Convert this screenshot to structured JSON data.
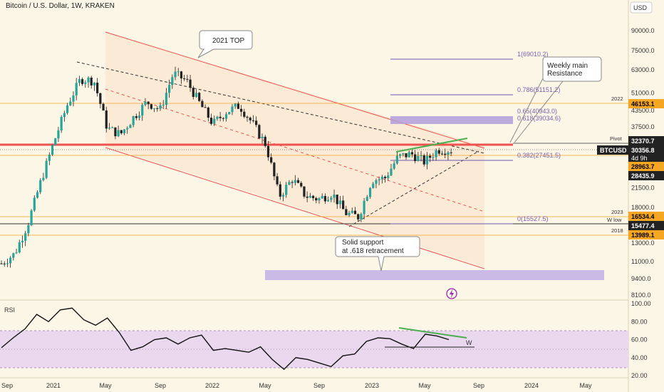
{
  "header": {
    "title": "Bitcoin / U.S. Dollar, 1W, KRAKEN"
  },
  "currency_button": "USD",
  "colors": {
    "up": "#26a69a",
    "down": "#222222",
    "bg": "#fbf6e6",
    "resistance": "#ef5350",
    "fib": "#6e5bb5",
    "rsi_band": "#ead8ee",
    "orange": "#f5a623",
    "green_line": "#4caf50"
  },
  "callouts": {
    "top_2021": "2021 TOP",
    "weekly_res_1": "Weekly main",
    "weekly_res_2": "Resistance",
    "support_1": "Solid support",
    "support_2": "at .618 retracement"
  },
  "fib_labels": {
    "f1": "1(69010.2)",
    "f786": "0.786(51151.2)",
    "f65": "0.65(40943.0)",
    "f618": "0.618(39034.6)",
    "f382": "0.382(27451.5)",
    "f0": "0(15527.5)"
  },
  "line_labels": {
    "y2022": "2022",
    "pivot": "Pivot",
    "y2023": "2023",
    "wlow": "W low",
    "y2018": "2018"
  },
  "price_tags": {
    "t46153": "46153.1",
    "t32370": "32370.7",
    "btcusd": "BTCUSD",
    "t30356": "30356.8",
    "t4d9h": "4d 9h",
    "t28963": "28963.7",
    "t28435": "28435.9",
    "t16534": "16534.4",
    "t15477": "15477.4",
    "t13989": "13989.1"
  },
  "rsi": {
    "label": "RSI",
    "divergence_mark": "W"
  },
  "chart_data": [
    {
      "type": "candlestick",
      "title": "Bitcoin / U.S. Dollar, 1W, KRAKEN",
      "scale": "log",
      "y_ticks": [
        "90000.0",
        "75000.0",
        "63000.0",
        "51000.0",
        "43500.0",
        "37500.0",
        "30500.0",
        "25500.0",
        "21500.0",
        "18000.0",
        "15000.0",
        "13000.0",
        "11000.0",
        "9400.0",
        "8100.0"
      ],
      "y_tick_values": [
        90000,
        75000,
        63000,
        51000,
        43500,
        37500,
        30500,
        25500,
        21500,
        18000,
        15000,
        13000,
        11000,
        9400,
        8100
      ],
      "x_ticks": [
        "Sep",
        "2021",
        "May",
        "Sep",
        "2022",
        "May",
        "Sep",
        "2023",
        "May",
        "Sep",
        "2024",
        "May"
      ],
      "horizontal_levels": [
        46153.1,
        32370.7,
        30356.8,
        28963.7,
        28435.9,
        16534.4,
        15477.4,
        13989.1
      ],
      "fib_levels": [
        69010.2,
        51151.2,
        40943.0,
        39034.6,
        27451.5,
        15527.5
      ],
      "close_path_approx": [
        [
          "2020-09",
          10800
        ],
        [
          "2020-10",
          11800
        ],
        [
          "2020-11",
          15500
        ],
        [
          "2020-12",
          23000
        ],
        [
          "2021-01",
          33000
        ],
        [
          "2021-02",
          46000
        ],
        [
          "2021-03",
          58000
        ],
        [
          "2021-04",
          57000
        ],
        [
          "2021-05",
          37000
        ],
        [
          "2021-06",
          35000
        ],
        [
          "2021-07",
          41000
        ],
        [
          "2021-08",
          47000
        ],
        [
          "2021-09",
          43800
        ],
        [
          "2021-10",
          61000
        ],
        [
          "2021-11",
          57000
        ],
        [
          "2021-12",
          46300
        ],
        [
          "2022-01",
          38500
        ],
        [
          "2022-02",
          43000
        ],
        [
          "2022-03",
          45500
        ],
        [
          "2022-04",
          38600
        ],
        [
          "2022-05",
          31800
        ],
        [
          "2022-06",
          19900
        ],
        [
          "2022-07",
          23300
        ],
        [
          "2022-08",
          20000
        ],
        [
          "2022-09",
          19400
        ],
        [
          "2022-10",
          20500
        ],
        [
          "2022-11",
          17100
        ],
        [
          "2022-12",
          16500
        ],
        [
          "2023-01",
          23100
        ],
        [
          "2023-02",
          23500
        ],
        [
          "2023-03",
          28500
        ],
        [
          "2023-04",
          29300
        ],
        [
          "2023-05",
          27200
        ],
        [
          "2023-06",
          30500
        ],
        [
          "2023-07",
          30356.8
        ]
      ]
    },
    {
      "type": "line",
      "title": "RSI",
      "y_ticks": [
        "100.00",
        "80.00",
        "60.00",
        "40.00",
        "20.00"
      ],
      "y_tick_values": [
        100,
        80,
        60,
        40,
        20
      ],
      "band": [
        30,
        70
      ],
      "values_approx": [
        51,
        62,
        72,
        88,
        80,
        93,
        95,
        82,
        76,
        84,
        68,
        48,
        52,
        60,
        62,
        55,
        62,
        65,
        48,
        50,
        48,
        46,
        52,
        38,
        27,
        40,
        38,
        34,
        30,
        42,
        44,
        58,
        62,
        61,
        55,
        50,
        66,
        64,
        60
      ]
    }
  ]
}
